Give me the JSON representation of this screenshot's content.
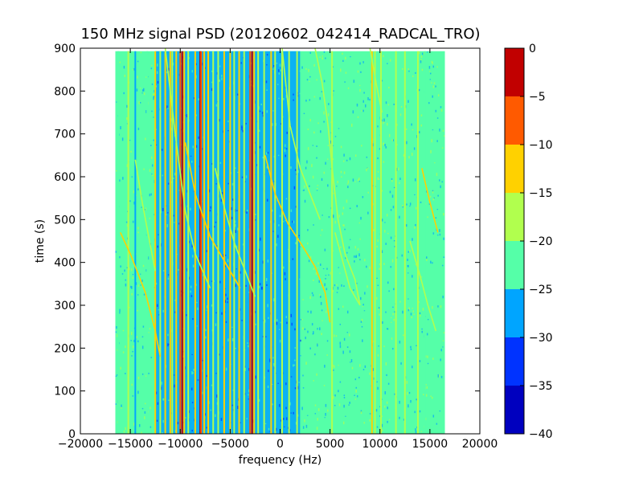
{
  "chart_data": {
    "type": "heatmap",
    "title": "150 MHz signal PSD (20120602_042414_RADCAL_TRO)",
    "xlabel": "frequency (Hz)",
    "ylabel": "time (s)",
    "xlim": [
      -20000,
      20000
    ],
    "ylim": [
      0,
      900
    ],
    "xticks": [
      -20000,
      -15000,
      -10000,
      -5000,
      0,
      5000,
      10000,
      15000,
      20000
    ],
    "xtick_labels": [
      "−20000",
      "−15000",
      "−10000",
      "−5000",
      "0",
      "5000",
      "10000",
      "15000",
      "20000"
    ],
    "yticks": [
      0,
      100,
      200,
      300,
      400,
      500,
      600,
      700,
      800,
      900
    ],
    "ytick_labels": [
      "0",
      "100",
      "200",
      "300",
      "400",
      "500",
      "600",
      "700",
      "800",
      "900"
    ],
    "data_extent": {
      "x": [
        -16500,
        16500
      ],
      "y": [
        0,
        893
      ]
    },
    "background_level": -22.5,
    "low_band": {
      "x": [
        -12500,
        2000
      ],
      "level": -27.5
    },
    "vertical_lines": [
      {
        "x": -16200,
        "level": -22.5
      },
      {
        "x": -15200,
        "level": -17.5
      },
      {
        "x": -14500,
        "level": -27.5
      },
      {
        "x": -13300,
        "level": -22.5
      },
      {
        "x": -12500,
        "level": -12.5
      },
      {
        "x": -12000,
        "level": -17.5
      },
      {
        "x": -11500,
        "level": -12.5
      },
      {
        "x": -11000,
        "level": -12.5
      },
      {
        "x": -10800,
        "level": -17.5
      },
      {
        "x": -10400,
        "level": -12.5
      },
      {
        "x": -10000,
        "level": -7.5
      },
      {
        "x": -9800,
        "level": -2.5
      },
      {
        "x": -9600,
        "level": -12.5
      },
      {
        "x": -9200,
        "level": -17.5
      },
      {
        "x": -8500,
        "level": -12.5
      },
      {
        "x": -8000,
        "level": -2.5
      },
      {
        "x": -7900,
        "level": -7.5
      },
      {
        "x": -7600,
        "level": -12.5
      },
      {
        "x": -7200,
        "level": -12.5
      },
      {
        "x": -6700,
        "level": -17.5
      },
      {
        "x": -6200,
        "level": -17.5
      },
      {
        "x": -5600,
        "level": -12.5
      },
      {
        "x": -5000,
        "level": -12.5
      },
      {
        "x": -4600,
        "level": -17.5
      },
      {
        "x": -4100,
        "level": -12.5
      },
      {
        "x": -3600,
        "level": -17.5
      },
      {
        "x": -3000,
        "level": -7.5
      },
      {
        "x": -2800,
        "level": -2.5
      },
      {
        "x": -2600,
        "level": -12.5
      },
      {
        "x": -2200,
        "level": -17.5
      },
      {
        "x": -1600,
        "level": -17.5
      },
      {
        "x": -900,
        "level": -12.5
      },
      {
        "x": -500,
        "level": -17.5
      },
      {
        "x": 200,
        "level": -17.5
      },
      {
        "x": 900,
        "level": -17.5
      },
      {
        "x": 1700,
        "level": -17.5
      },
      {
        "x": 5200,
        "level": -17.5
      },
      {
        "x": 9200,
        "level": -12.5
      },
      {
        "x": 9500,
        "level": -17.5
      },
      {
        "x": 10100,
        "level": -17.5
      },
      {
        "x": 11600,
        "level": -17.5
      },
      {
        "x": 12500,
        "level": -17.5
      },
      {
        "x": 13800,
        "level": -17.5
      },
      {
        "x": 14500,
        "level": -22.5
      }
    ],
    "drifting_signals": [
      {
        "points": [
          [
            -16000,
            470
          ],
          [
            -15000,
            420
          ],
          [
            -13500,
            330
          ],
          [
            -12500,
            240
          ],
          [
            -12000,
            180
          ]
        ],
        "level": -12.5
      },
      {
        "points": [
          [
            -14500,
            640
          ],
          [
            -13800,
            540
          ],
          [
            -13000,
            440
          ],
          [
            -12500,
            380
          ]
        ],
        "level": -17.5
      },
      {
        "points": [
          [
            -11500,
            900
          ],
          [
            -10500,
            700
          ],
          [
            -9500,
            520
          ],
          [
            -8500,
            420
          ],
          [
            -7000,
            340
          ]
        ],
        "level": -17.5
      },
      {
        "points": [
          [
            -9500,
            680
          ],
          [
            -8500,
            560
          ],
          [
            -7000,
            460
          ],
          [
            -5500,
            400
          ],
          [
            -4000,
            340
          ]
        ],
        "level": -12.5
      },
      {
        "points": [
          [
            -6500,
            620
          ],
          [
            -5500,
            520
          ],
          [
            -4500,
            440
          ],
          [
            -3500,
            380
          ],
          [
            -2500,
            320
          ]
        ],
        "level": -17.5
      },
      {
        "points": [
          [
            -1500,
            650
          ],
          [
            -500,
            560
          ],
          [
            800,
            490
          ],
          [
            2200,
            440
          ],
          [
            3500,
            390
          ],
          [
            4500,
            330
          ],
          [
            5000,
            260
          ]
        ],
        "level": -12.5
      },
      {
        "points": [
          [
            200,
            900
          ],
          [
            1000,
            720
          ],
          [
            2000,
            620
          ],
          [
            3000,
            560
          ],
          [
            4000,
            500
          ]
        ],
        "level": -17.5
      },
      {
        "points": [
          [
            3500,
            900
          ],
          [
            4200,
            820
          ],
          [
            4800,
            720
          ],
          [
            5300,
            600
          ],
          [
            5800,
            500
          ],
          [
            6500,
            420
          ],
          [
            7500,
            360
          ],
          [
            8000,
            300
          ]
        ],
        "level": -17.5
      },
      {
        "points": [
          [
            5500,
            470
          ],
          [
            6300,
            400
          ],
          [
            7000,
            340
          ],
          [
            8000,
            300
          ]
        ],
        "level": -17.5
      },
      {
        "points": [
          [
            13000,
            450
          ],
          [
            14000,
            370
          ],
          [
            14800,
            300
          ],
          [
            15600,
            240
          ]
        ],
        "level": -17.5
      },
      {
        "points": [
          [
            14200,
            620
          ],
          [
            15000,
            540
          ],
          [
            15800,
            470
          ]
        ],
        "level": -12.5
      },
      {
        "points": [
          [
            9000,
            900
          ],
          [
            9600,
            820
          ],
          [
            10200,
            750
          ]
        ],
        "level": -17.5
      }
    ],
    "colorbar": {
      "levels": [
        -40,
        -35,
        -30,
        -25,
        -20,
        -15,
        -10,
        -5,
        0
      ],
      "tick_labels": [
        "−40",
        "−35",
        "−30",
        "−25",
        "−20",
        "−15",
        "−10",
        "−5",
        "0"
      ],
      "colors": [
        "#0000bf",
        "#0033ff",
        "#00a5ff",
        "#55ffa8",
        "#b1ff4e",
        "#ffd100",
        "#ff5a00",
        "#c10000"
      ]
    }
  }
}
